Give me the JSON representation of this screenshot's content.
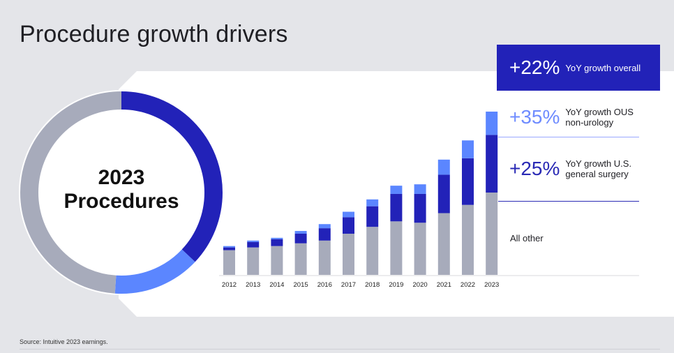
{
  "title": "Procedure growth drivers",
  "donut": {
    "label_line1": "2023",
    "label_line2": "Procedures",
    "segments": [
      {
        "name": "U.S. general surgery",
        "fraction": 0.37,
        "color": "#2222b8"
      },
      {
        "name": "OUS non-urology",
        "fraction": 0.14,
        "color": "#5b86ff"
      },
      {
        "name": "All other",
        "fraction": 0.49,
        "color": "#a7abbb"
      }
    ]
  },
  "callouts": {
    "overall": {
      "value": "+22%",
      "text": "YoY growth overall"
    },
    "ous": {
      "value": "+35%",
      "line1": "YoY growth OUS",
      "line2": "non-urology"
    },
    "us": {
      "value": "+25%",
      "line1": "YoY growth U.S.",
      "line2": "general surgery"
    },
    "other": "All other"
  },
  "source": "Source: Intuitive 2023 earnings.",
  "colors": {
    "other": "#a7abbb",
    "us_general_surgery": "#2222b8",
    "ous_non_urology": "#5b86ff",
    "accent": "#2222b8"
  },
  "chart_data": {
    "type": "bar",
    "stacked": true,
    "categories": [
      "2012",
      "2013",
      "2014",
      "2015",
      "2016",
      "2017",
      "2018",
      "2019",
      "2020",
      "2021",
      "2022",
      "2023"
    ],
    "series": [
      {
        "name": "All other",
        "values": [
          18,
          20,
          21,
          23,
          25,
          30,
          35,
          39,
          38,
          45,
          51,
          60
        ]
      },
      {
        "name": "",
        "values": [
          2,
          4,
          5,
          7,
          9,
          12,
          15,
          20,
          21,
          28,
          34,
          42
        ]
      },
      {
        "name": "",
        "values": [
          1,
          1,
          1,
          2,
          3,
          4,
          5,
          6,
          7,
          11,
          13,
          17
        ]
      }
    ],
    "ylim": [
      0,
      120
    ],
    "grid": false,
    "legend": "right"
  }
}
